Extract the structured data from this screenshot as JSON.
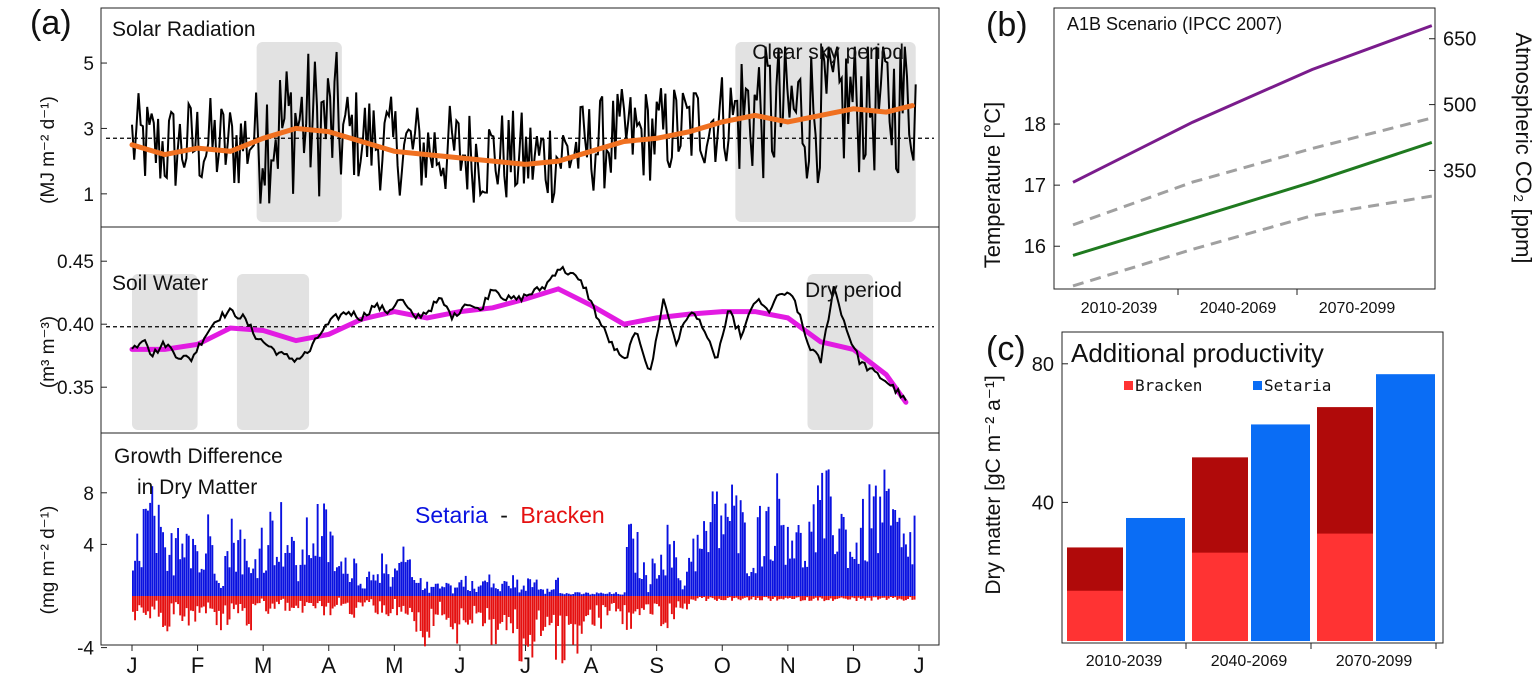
{
  "panel_labels": {
    "a": "(a)",
    "b": "(b)",
    "c": "(c)"
  },
  "chart_data": [
    {
      "id": "solar",
      "type": "line",
      "title": "Solar Radiation",
      "ylabel": "(MJ m⁻² d⁻¹)",
      "ylim": [
        0.2,
        6.5
      ],
      "yticks": [
        1,
        3,
        5
      ],
      "reference_line": 2.7,
      "shaded_periods": [
        {
          "start": 1.9,
          "end": 3.2
        },
        {
          "start": 9.2,
          "end": 11.95
        }
      ],
      "annotation": "Clear sky period",
      "smooth_trend": [
        [
          0.0,
          2.5
        ],
        [
          0.5,
          2.2
        ],
        [
          1.0,
          2.4
        ],
        [
          1.5,
          2.3
        ],
        [
          2.0,
          2.7
        ],
        [
          2.5,
          3.0
        ],
        [
          3.0,
          2.9
        ],
        [
          3.5,
          2.6
        ],
        [
          4.0,
          2.3
        ],
        [
          4.5,
          2.2
        ],
        [
          5.0,
          2.1
        ],
        [
          5.5,
          2.0
        ],
        [
          6.0,
          1.9
        ],
        [
          6.5,
          2.0
        ],
        [
          7.0,
          2.3
        ],
        [
          7.5,
          2.6
        ],
        [
          8.0,
          2.7
        ],
        [
          8.5,
          2.9
        ],
        [
          9.0,
          3.2
        ],
        [
          9.5,
          3.4
        ],
        [
          10.0,
          3.2
        ],
        [
          10.5,
          3.4
        ],
        [
          11.0,
          3.6
        ],
        [
          11.5,
          3.5
        ],
        [
          11.9,
          3.7
        ]
      ],
      "daily_series_description": "black daily line fluctuating between about 0.8 and 5.5"
    },
    {
      "id": "soil",
      "type": "line",
      "title": "Soil Water",
      "ylabel": "(m³ m⁻³)",
      "ylim": [
        0.32,
        0.47
      ],
      "yticks": [
        0.35,
        0.4,
        0.45
      ],
      "yticklabels": [
        "0.35",
        "0.40",
        "0.45"
      ],
      "reference_line": 0.398,
      "shaded_periods": [
        {
          "start": 0.0,
          "end": 1.0
        },
        {
          "start": 1.6,
          "end": 2.7
        },
        {
          "start": 10.3,
          "end": 11.3
        }
      ],
      "annotation": "Dry period",
      "smooth_trend": [
        [
          0.0,
          0.38
        ],
        [
          0.5,
          0.38
        ],
        [
          1.0,
          0.384
        ],
        [
          1.5,
          0.397
        ],
        [
          2.0,
          0.395
        ],
        [
          2.5,
          0.387
        ],
        [
          3.0,
          0.392
        ],
        [
          3.5,
          0.404
        ],
        [
          4.0,
          0.41
        ],
        [
          4.5,
          0.405
        ],
        [
          5.0,
          0.41
        ],
        [
          5.5,
          0.413
        ],
        [
          6.0,
          0.42
        ],
        [
          6.5,
          0.428
        ],
        [
          7.0,
          0.415
        ],
        [
          7.5,
          0.4
        ],
        [
          8.0,
          0.405
        ],
        [
          8.5,
          0.408
        ],
        [
          9.0,
          0.41
        ],
        [
          9.5,
          0.41
        ],
        [
          10.0,
          0.405
        ],
        [
          10.5,
          0.386
        ],
        [
          11.0,
          0.38
        ],
        [
          11.5,
          0.36
        ],
        [
          11.8,
          0.338
        ]
      ],
      "daily_series": [
        [
          0.0,
          0.38
        ],
        [
          0.2,
          0.39
        ],
        [
          0.3,
          0.375
        ],
        [
          0.5,
          0.385
        ],
        [
          0.7,
          0.375
        ],
        [
          0.9,
          0.372
        ],
        [
          1.1,
          0.39
        ],
        [
          1.3,
          0.405
        ],
        [
          1.5,
          0.41
        ],
        [
          1.7,
          0.405
        ],
        [
          1.9,
          0.39
        ],
        [
          2.1,
          0.382
        ],
        [
          2.3,
          0.375
        ],
        [
          2.5,
          0.372
        ],
        [
          2.7,
          0.378
        ],
        [
          2.9,
          0.395
        ],
        [
          3.1,
          0.405
        ],
        [
          3.3,
          0.41
        ],
        [
          3.5,
          0.405
        ],
        [
          3.7,
          0.415
        ],
        [
          3.9,
          0.41
        ],
        [
          4.1,
          0.42
        ],
        [
          4.3,
          0.405
        ],
        [
          4.5,
          0.41
        ],
        [
          4.7,
          0.42
        ],
        [
          4.9,
          0.405
        ],
        [
          5.1,
          0.418
        ],
        [
          5.3,
          0.41
        ],
        [
          5.5,
          0.43
        ],
        [
          5.7,
          0.42
        ],
        [
          5.9,
          0.42
        ],
        [
          6.1,
          0.425
        ],
        [
          6.3,
          0.43
        ],
        [
          6.5,
          0.445
        ],
        [
          6.7,
          0.44
        ],
        [
          6.9,
          0.43
        ],
        [
          7.1,
          0.405
        ],
        [
          7.3,
          0.385
        ],
        [
          7.5,
          0.37
        ],
        [
          7.7,
          0.395
        ],
        [
          7.9,
          0.36
        ],
        [
          8.1,
          0.42
        ],
        [
          8.3,
          0.385
        ],
        [
          8.5,
          0.41
        ],
        [
          8.7,
          0.4
        ],
        [
          8.9,
          0.37
        ],
        [
          9.1,
          0.41
        ],
        [
          9.3,
          0.39
        ],
        [
          9.5,
          0.42
        ],
        [
          9.7,
          0.41
        ],
        [
          9.9,
          0.425
        ],
        [
          10.1,
          0.42
        ],
        [
          10.3,
          0.385
        ],
        [
          10.5,
          0.37
        ],
        [
          10.7,
          0.43
        ],
        [
          10.9,
          0.395
        ],
        [
          11.1,
          0.37
        ],
        [
          11.3,
          0.362
        ],
        [
          11.5,
          0.355
        ],
        [
          11.7,
          0.345
        ],
        [
          11.8,
          0.338
        ]
      ]
    },
    {
      "id": "growth",
      "type": "bar",
      "title": "Growth Difference",
      "title2": "in Dry Matter",
      "ylabel": "(mg m⁻² d⁻¹)",
      "ylim": [
        -7,
        12.5
      ],
      "yticks": [
        -4,
        4,
        8
      ],
      "legend_setaria": "Setaria",
      "legend_dash": "-",
      "legend_bracken": "Bracken",
      "colors": {
        "positive": "#0a12e0",
        "negative": "#e51010"
      },
      "envelope_description": "daily bars: positive (Setaria) up to about 10.5, negative (Bracken) down to about -6",
      "xticklabels": [
        "J",
        "F",
        "M",
        "A",
        "M",
        "J",
        "J",
        "A",
        "S",
        "O",
        "N",
        "D",
        "J"
      ]
    },
    {
      "id": "scenario",
      "type": "line",
      "annotation": "A1B Scenario (IPCC 2007)",
      "ylabel_left": "Temperature [°C]",
      "ylabel_right": "Atmospheric CO₂ [ppm]",
      "categories": [
        "2010-2039",
        "2040-2069",
        "2070-2099"
      ],
      "yticks_left": [
        16,
        17,
        18
      ],
      "yticks_right": [
        350,
        500,
        650
      ],
      "ylim_left": [
        15.3,
        19.9
      ],
      "ylim_right": [
        80,
        720
      ],
      "series": [
        {
          "color": "#7a1c8c",
          "axis": "right",
          "x": [
            0,
            1,
            2,
            3
          ],
          "values": [
            323,
            460,
            580,
            680
          ]
        },
        {
          "color": "#1f7a1f",
          "axis": "left",
          "x": [
            0,
            1,
            2,
            3
          ],
          "values": [
            15.85,
            16.45,
            17.05,
            17.7
          ]
        },
        {
          "color": "#a0a0a0",
          "axis": "left",
          "x": [
            0,
            1,
            2,
            3
          ],
          "values": [
            16.35,
            17.05,
            17.6,
            18.1
          ],
          "dashed": true
        },
        {
          "color": "#a0a0a0",
          "axis": "left",
          "x": [
            0,
            1,
            2,
            3
          ],
          "values": [
            15.35,
            15.95,
            16.5,
            16.82
          ],
          "dashed": true
        }
      ]
    },
    {
      "id": "productivity",
      "type": "bar",
      "title": "Additional productivity",
      "ylabel": "Dry matter [gC m⁻² a⁻¹]",
      "categories": [
        "2010-2039",
        "2040-2069",
        "2070-2099"
      ],
      "yticks": [
        40,
        80
      ],
      "ylim": [
        0,
        86
      ],
      "legend": [
        {
          "name": "Bracken",
          "color": "#ff3333"
        },
        {
          "name": "Setaria",
          "color": "#0a6df5"
        }
      ],
      "series": [
        {
          "name": "Bracken",
          "color": "#ff3333",
          "dark_color": "#b00a0a",
          "values": [
            27,
            53,
            67.5
          ],
          "inner_values": [
            14.5,
            25.5,
            31
          ]
        },
        {
          "name": "Setaria",
          "color": "#0a6df5",
          "values": [
            35.5,
            62.5,
            77
          ]
        }
      ]
    }
  ]
}
